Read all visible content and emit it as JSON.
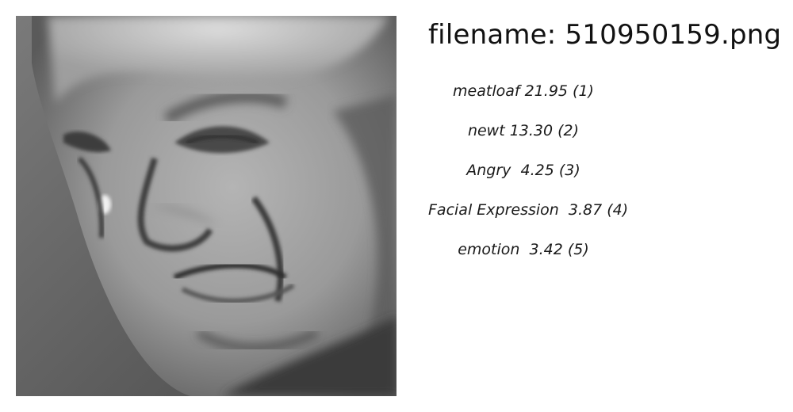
{
  "filename_prefix": "filename: ",
  "filename": "510950159.png",
  "labels": [
    "meatloaf 21.95 (1)",
    "newt 13.30 (2)",
    "Angry  4.25 (3)",
    "Facial Expression  3.87 (4)",
    "emotion  3.42 (5)"
  ],
  "image_description_icon": "face-photo"
}
